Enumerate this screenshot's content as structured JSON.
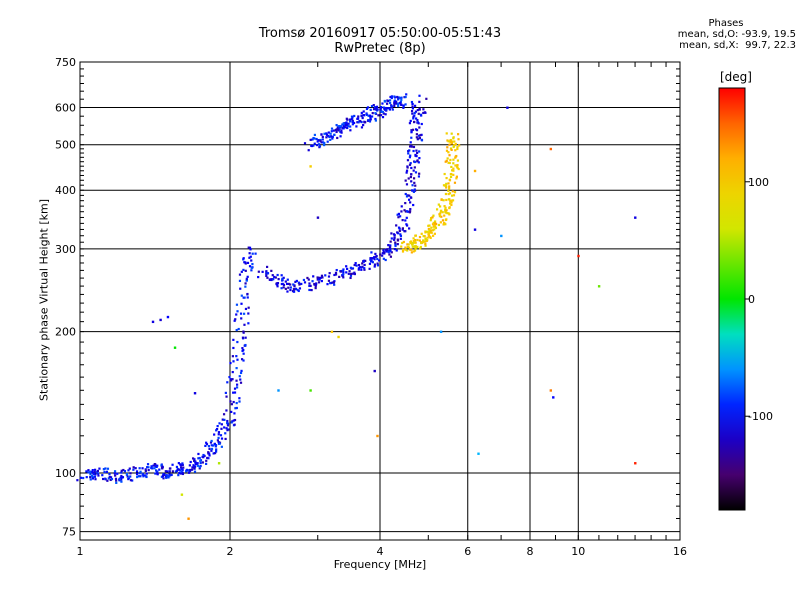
{
  "chart_data": {
    "type": "scatter",
    "title": "Tromsø 20160917 05:50:00-05:51:43",
    "subtitle": "RwPretec (8p)",
    "xlabel": "Frequency [MHz]",
    "ylabel": "Stationary phase Virtual Height [km]",
    "x_scale": "log",
    "y_scale": "log",
    "xlim": [
      1,
      16
    ],
    "ylim": [
      72,
      750
    ],
    "grid": true,
    "x_ticks": [
      {
        "value": 1,
        "label": "1"
      },
      {
        "value": 2,
        "label": "2"
      },
      {
        "value": 4,
        "label": "4"
      },
      {
        "value": 6,
        "label": "6"
      },
      {
        "value": 8,
        "label": "8"
      },
      {
        "value": 10,
        "label": "10"
      },
      {
        "value": 16,
        "label": "16"
      }
    ],
    "y_ticks": [
      {
        "value": 75,
        "label": "75"
      },
      {
        "value": 100,
        "label": "100"
      },
      {
        "value": 200,
        "label": "200"
      },
      {
        "value": 300,
        "label": "300"
      },
      {
        "value": 400,
        "label": "400"
      },
      {
        "value": 500,
        "label": "500"
      },
      {
        "value": 600,
        "label": "600"
      },
      {
        "value": 750,
        "label": "750"
      }
    ],
    "phase_stats": {
      "heading": "Phases",
      "line_o": "mean, sd,O: -93.9, 19.5",
      "line_x": "mean, sd,X:  99.7, 22.3"
    },
    "colorbar": {
      "title": "[deg]",
      "range": [
        -180,
        180
      ],
      "ticks": [
        {
          "value": 100,
          "label": "100"
        },
        {
          "value": 0,
          "label": "0"
        },
        {
          "value": -100,
          "label": "-100"
        }
      ]
    },
    "series": [
      {
        "role": "o-trace-low",
        "phase": -100,
        "points": [
          [
            1.02,
            99
          ],
          [
            1.1,
            100
          ],
          [
            1.2,
            98
          ],
          [
            1.3,
            100
          ],
          [
            1.4,
            102
          ],
          [
            1.5,
            100
          ],
          [
            1.6,
            102
          ],
          [
            1.7,
            104
          ],
          [
            1.8,
            110
          ],
          [
            1.9,
            118
          ],
          [
            2.0,
            130
          ],
          [
            2.05,
            160
          ],
          [
            2.1,
            200
          ],
          [
            2.15,
            260
          ],
          [
            2.2,
            300
          ]
        ]
      },
      {
        "role": "o-trace-upper",
        "phase": -110,
        "points": [
          [
            2.3,
            270
          ],
          [
            2.5,
            255
          ],
          [
            2.7,
            248
          ],
          [
            3.0,
            255
          ],
          [
            3.3,
            262
          ],
          [
            3.6,
            275
          ],
          [
            3.9,
            285
          ],
          [
            4.2,
            300
          ],
          [
            4.4,
            330
          ],
          [
            4.55,
            380
          ],
          [
            4.65,
            440
          ],
          [
            4.7,
            500
          ],
          [
            4.75,
            560
          ],
          [
            4.8,
            620
          ]
        ]
      },
      {
        "role": "o-trace-top",
        "phase": -100,
        "points": [
          [
            2.9,
            500
          ],
          [
            3.1,
            520
          ],
          [
            3.3,
            540
          ],
          [
            3.5,
            555
          ],
          [
            3.7,
            570
          ],
          [
            3.9,
            585
          ],
          [
            4.1,
            600
          ],
          [
            4.3,
            615
          ],
          [
            4.5,
            625
          ]
        ]
      },
      {
        "role": "x-trace",
        "phase": 100,
        "points": [
          [
            4.5,
            300
          ],
          [
            4.7,
            305
          ],
          [
            4.9,
            315
          ],
          [
            5.1,
            330
          ],
          [
            5.3,
            350
          ],
          [
            5.45,
            380
          ],
          [
            5.55,
            430
          ],
          [
            5.6,
            480
          ],
          [
            5.6,
            530
          ]
        ]
      }
    ],
    "scatter_points": [
      {
        "x": 1.4,
        "y": 210,
        "phase": -110
      },
      {
        "x": 1.45,
        "y": 212,
        "phase": -115
      },
      {
        "x": 1.5,
        "y": 215,
        "phase": -100
      },
      {
        "x": 1.55,
        "y": 185,
        "phase": 0
      },
      {
        "x": 1.7,
        "y": 148,
        "phase": -110
      },
      {
        "x": 2.5,
        "y": 150,
        "phase": -60
      },
      {
        "x": 2.9,
        "y": 150,
        "phase": 20
      },
      {
        "x": 3.2,
        "y": 200,
        "phase": 110
      },
      {
        "x": 3.3,
        "y": 195,
        "phase": 90
      },
      {
        "x": 3.9,
        "y": 165,
        "phase": -120
      },
      {
        "x": 3.95,
        "y": 120,
        "phase": 130
      },
      {
        "x": 3.0,
        "y": 350,
        "phase": -120
      },
      {
        "x": 2.9,
        "y": 450,
        "phase": 100
      },
      {
        "x": 5.3,
        "y": 200,
        "phase": -60
      },
      {
        "x": 6.2,
        "y": 440,
        "phase": 120
      },
      {
        "x": 6.2,
        "y": 330,
        "phase": -110
      },
      {
        "x": 6.3,
        "y": 110,
        "phase": -50
      },
      {
        "x": 7.0,
        "y": 320,
        "phase": -60
      },
      {
        "x": 7.2,
        "y": 600,
        "phase": -110
      },
      {
        "x": 8.8,
        "y": 490,
        "phase": 150
      },
      {
        "x": 8.8,
        "y": 150,
        "phase": 140
      },
      {
        "x": 8.9,
        "y": 145,
        "phase": -100
      },
      {
        "x": 10.0,
        "y": 290,
        "phase": 170
      },
      {
        "x": 11.0,
        "y": 250,
        "phase": 30
      },
      {
        "x": 13.0,
        "y": 350,
        "phase": -110
      },
      {
        "x": 13.0,
        "y": 105,
        "phase": 170
      },
      {
        "x": 1.6,
        "y": 90,
        "phase": 60
      },
      {
        "x": 1.65,
        "y": 80,
        "phase": 130
      },
      {
        "x": 1.9,
        "y": 105,
        "phase": 50
      }
    ]
  }
}
